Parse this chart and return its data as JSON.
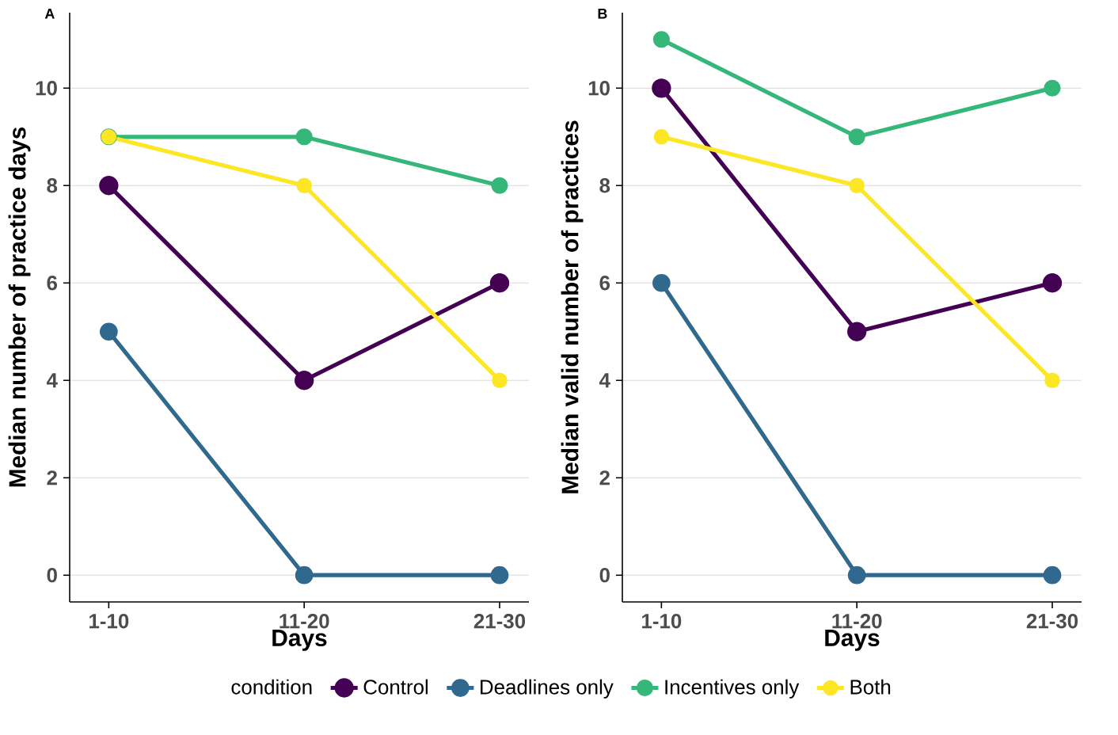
{
  "chart_data": [
    {
      "type": "line",
      "title": "A",
      "ylabel": "Median number of practice days",
      "xlabel": "Days",
      "categories": [
        "1-10",
        "11-20",
        "21-30"
      ],
      "ylim": [
        -0.55,
        11.55
      ],
      "yticks": [
        0,
        2,
        4,
        6,
        8,
        10
      ],
      "grid": "y",
      "marker": "circle",
      "legend": "bottom",
      "legend_title": "condition",
      "series": [
        {
          "name": "Control",
          "color": "#440154",
          "values": [
            8,
            4,
            6
          ]
        },
        {
          "name": "Deadlines only",
          "color": "#31688e",
          "values": [
            5,
            0,
            0
          ]
        },
        {
          "name": "Incentives only",
          "color": "#35b779",
          "values": [
            9,
            9,
            8
          ]
        },
        {
          "name": "Both",
          "color": "#fde725",
          "values": [
            9,
            8,
            4
          ]
        }
      ]
    },
    {
      "type": "line",
      "title": "B",
      "ylabel": "Median valid number of practices",
      "xlabel": "Days",
      "categories": [
        "1-10",
        "11-20",
        "21-30"
      ],
      "ylim": [
        -0.55,
        11.55
      ],
      "yticks": [
        0,
        2,
        4,
        6,
        8,
        10
      ],
      "grid": "y",
      "marker": "circle",
      "series": [
        {
          "color": "#440154",
          "values": [
            10,
            5,
            6
          ]
        },
        {
          "color": "#31688e",
          "values": [
            6,
            0,
            0
          ]
        },
        {
          "color": "#35b779",
          "values": [
            11,
            9,
            10
          ]
        },
        {
          "color": "#fde725",
          "values": [
            9,
            8,
            4
          ]
        }
      ]
    }
  ]
}
